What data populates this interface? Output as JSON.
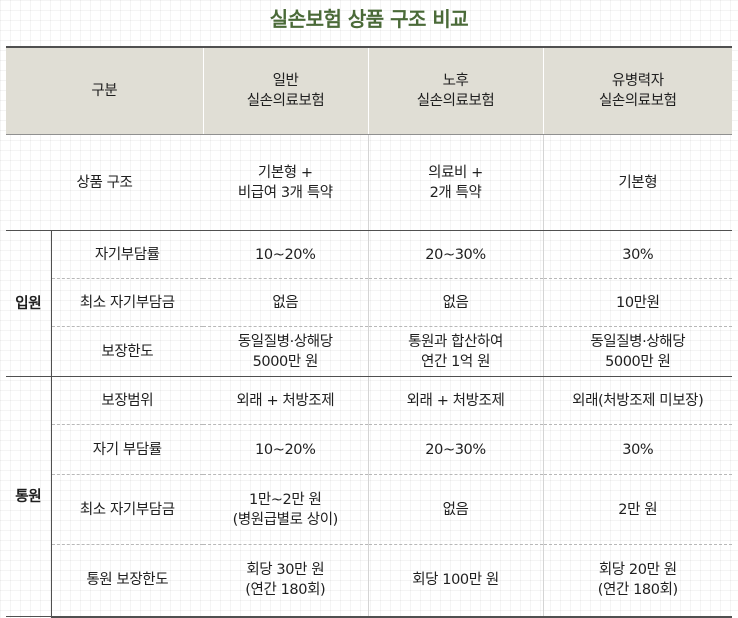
{
  "title": "실손보험 상품 구조 비교",
  "header": {
    "category": "구분",
    "col1": [
      "일반",
      "실손의료보험"
    ],
    "col2": [
      "노후",
      "실손의료보험"
    ],
    "col3": [
      "유병력자",
      "실손의료보험"
    ]
  },
  "product_row": {
    "label": "상품 구조",
    "col1": [
      "기본형 +",
      "비급여 3개 특약"
    ],
    "col2": [
      "의료비 +",
      "2개 특약"
    ],
    "col3": [
      "기본형"
    ]
  },
  "inpatient": {
    "group": "입원",
    "rows": [
      {
        "label": "자기부담률",
        "col1": [
          "10~20%"
        ],
        "col2": [
          "20~30%"
        ],
        "col3": [
          "30%"
        ]
      },
      {
        "label": "최소 자기부담금",
        "col1": [
          "없음"
        ],
        "col2": [
          "없음"
        ],
        "col3": [
          "10만원"
        ]
      },
      {
        "label": "보장한도",
        "col1": [
          "동일질병·상해당",
          "5000만 원"
        ],
        "col2": [
          "통원과 합산하여",
          "연간 1억 원"
        ],
        "col3": [
          "동일질병·상해당",
          "5000만 원"
        ]
      }
    ]
  },
  "outpatient": {
    "group": "통원",
    "rows": [
      {
        "label": "보장범위",
        "col1": [
          "외래 + 처방조제"
        ],
        "col2": [
          "외래 + 처방조제"
        ],
        "col3": [
          "외래(처방조제 미보장)"
        ]
      },
      {
        "label": "자기 부담률",
        "col1": [
          "10~20%"
        ],
        "col2": [
          "20~30%"
        ],
        "col3": [
          "30%"
        ]
      },
      {
        "label": "최소 자기부담금",
        "col1": [
          "1만~2만 원",
          "(병원급별로 상이)"
        ],
        "col2": [
          "없음"
        ],
        "col3": [
          "2만 원"
        ]
      },
      {
        "label": "통원 보장한도",
        "col1": [
          "회당 30만 원",
          "(연간 180회)"
        ],
        "col2": [
          "회당 100만 원"
        ],
        "col3": [
          "회당 20만 원",
          "(연간 180회)"
        ]
      }
    ]
  }
}
